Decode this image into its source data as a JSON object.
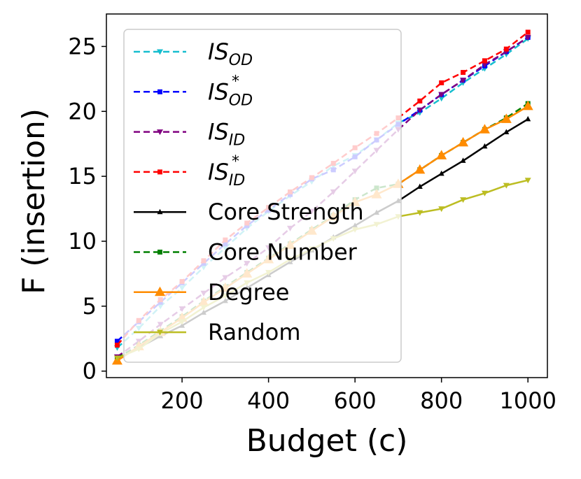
{
  "chart_data": {
    "type": "line",
    "xlabel": "Budget (c)",
    "ylabel": "F (insertion)",
    "xlim": [
      25,
      1045
    ],
    "ylim": [
      -0.5,
      27.5
    ],
    "xticks": [
      200,
      400,
      600,
      800,
      1000
    ],
    "yticks": [
      0,
      5,
      10,
      15,
      20,
      25
    ],
    "grid": false,
    "legend_position": "upper-left",
    "x": [
      50,
      100,
      150,
      200,
      250,
      300,
      350,
      400,
      450,
      500,
      550,
      600,
      650,
      700,
      750,
      800,
      850,
      900,
      950,
      1000
    ],
    "series": [
      {
        "name": "IS",
        "name_sub": "OD",
        "name_sup": "",
        "color": "#17becf",
        "line_style": "dashed",
        "marker": "triangle-down",
        "values": [
          1.8,
          3.3,
          5.0,
          6.4,
          8.0,
          9.5,
          11.0,
          12.3,
          13.5,
          14.6,
          15.8,
          16.6,
          17.8,
          19.1,
          19.9,
          21.0,
          22.2,
          23.3,
          24.4,
          25.6
        ]
      },
      {
        "name": "IS",
        "name_sub": "OD",
        "name_sup": "*",
        "color": "#0000ff",
        "line_style": "dashed",
        "marker": "square",
        "values": [
          2.3,
          3.8,
          5.3,
          6.8,
          8.3,
          9.8,
          11.2,
          12.4,
          13.6,
          14.8,
          15.5,
          16.5,
          17.8,
          19.0,
          20.1,
          21.3,
          22.4,
          23.5,
          24.6,
          25.7
        ]
      },
      {
        "name": "IS",
        "name_sub": "ID",
        "name_sup": "",
        "color": "#800080",
        "line_style": "dashed",
        "marker": "triangle-down",
        "values": [
          1.1,
          2.3,
          3.6,
          4.8,
          6.0,
          7.2,
          8.3,
          9.5,
          11.0,
          12.3,
          13.8,
          15.4,
          17.0,
          18.6,
          20.1,
          21.3,
          22.4,
          23.6,
          24.6,
          25.7
        ]
      },
      {
        "name": "IS",
        "name_sub": "ID",
        "name_sup": "*",
        "color": "#ff0000",
        "line_style": "dashed",
        "marker": "square",
        "values": [
          2.0,
          3.9,
          5.5,
          6.9,
          8.5,
          10.1,
          11.4,
          12.6,
          13.8,
          14.9,
          16.0,
          17.2,
          18.3,
          19.5,
          20.8,
          22.2,
          23.0,
          23.9,
          24.8,
          26.1
        ]
      },
      {
        "name": "Core Strength",
        "color": "#000000",
        "line_style": "solid",
        "marker": "triangle-up",
        "values": [
          0.9,
          1.8,
          2.7,
          3.5,
          4.5,
          5.4,
          6.4,
          7.4,
          8.4,
          9.3,
          10.3,
          11.2,
          12.2,
          13.1,
          14.2,
          15.2,
          16.2,
          17.3,
          18.4,
          19.4
        ]
      },
      {
        "name": "Core Number",
        "color": "#008000",
        "line_style": "dashed",
        "marker": "square",
        "values": [
          1.0,
          2.0,
          3.1,
          4.2,
          5.4,
          6.5,
          7.6,
          8.7,
          9.8,
          10.9,
          12.0,
          13.2,
          14.1,
          14.4,
          15.5,
          16.6,
          17.6,
          18.6,
          19.5,
          20.6
        ]
      },
      {
        "name": "Degree",
        "color": "#ff8c00",
        "line_style": "solid",
        "marker": "triangle-up-large",
        "values": [
          0.8,
          1.9,
          3.0,
          4.1,
          5.3,
          6.4,
          7.5,
          8.6,
          9.7,
          10.8,
          11.9,
          13.0,
          13.6,
          14.4,
          15.5,
          16.6,
          17.6,
          18.6,
          19.4,
          20.4
        ]
      },
      {
        "name": "Random",
        "color": "#bcbd22",
        "line_style": "solid",
        "marker": "triangle-down",
        "values": [
          1.0,
          1.7,
          2.9,
          3.8,
          4.9,
          5.8,
          6.8,
          7.6,
          8.6,
          9.4,
          10.2,
          10.9,
          11.3,
          11.9,
          12.2,
          12.5,
          13.2,
          13.7,
          14.3,
          14.7
        ]
      }
    ]
  }
}
